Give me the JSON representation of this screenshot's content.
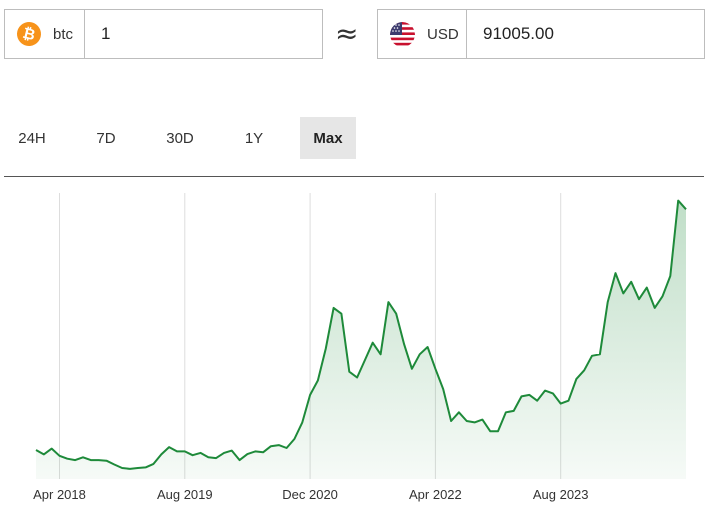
{
  "converter": {
    "from": {
      "code": "btc",
      "amount": "1",
      "icon": "bitcoin-icon",
      "icon_color": "#f7931a",
      "icon_glyph": "₿"
    },
    "approx_symbol": "≈",
    "to": {
      "code": "USD",
      "amount": "91005.00",
      "icon": "us-flag-icon"
    }
  },
  "ranges": [
    {
      "label": "24H",
      "active": false
    },
    {
      "label": "7D",
      "active": false
    },
    {
      "label": "30D",
      "active": false
    },
    {
      "label": "1Y",
      "active": false
    },
    {
      "label": "Max",
      "active": true
    }
  ],
  "chart_data": {
    "type": "area",
    "line_color": "#1e8a3a",
    "fill_color": "#e3f2e7",
    "grid": "vertical",
    "x_ticks": [
      "Apr 2018",
      "Aug 2019",
      "Dec 2020",
      "Apr 2022",
      "Aug 2023"
    ],
    "xlim": [
      "2018-01",
      "2024-12"
    ],
    "ylim": [
      0,
      100000
    ],
    "series": [
      {
        "x": [
          "2018-01",
          "2018-02",
          "2018-03",
          "2018-04",
          "2018-05",
          "2018-06",
          "2018-07",
          "2018-08",
          "2018-09",
          "2018-10",
          "2018-11",
          "2018-12",
          "2019-01",
          "2019-02",
          "2019-03",
          "2019-04",
          "2019-05",
          "2019-06",
          "2019-07",
          "2019-08",
          "2019-09",
          "2019-10",
          "2019-11",
          "2019-12",
          "2020-01",
          "2020-02",
          "2020-03",
          "2020-04",
          "2020-05",
          "2020-06",
          "2020-07",
          "2020-08",
          "2020-09",
          "2020-10",
          "2020-11",
          "2020-12",
          "2021-01",
          "2021-02",
          "2021-03",
          "2021-04",
          "2021-05",
          "2021-06",
          "2021-07",
          "2021-08",
          "2021-09",
          "2021-10",
          "2021-11",
          "2021-12",
          "2022-01",
          "2022-02",
          "2022-03",
          "2022-04",
          "2022-05",
          "2022-06",
          "2022-07",
          "2022-08",
          "2022-09",
          "2022-10",
          "2022-11",
          "2022-12",
          "2023-01",
          "2023-02",
          "2023-03",
          "2023-04",
          "2023-05",
          "2023-06",
          "2023-07",
          "2023-08",
          "2023-09",
          "2023-10",
          "2023-11",
          "2023-12",
          "2024-01",
          "2024-02",
          "2024-03",
          "2024-04",
          "2024-05",
          "2024-06",
          "2024-07",
          "2024-08",
          "2024-09",
          "2024-10",
          "2024-11",
          "2024-12"
        ],
        "values": [
          10000,
          8500,
          10500,
          8000,
          7000,
          6500,
          7500,
          6500,
          6500,
          6300,
          5000,
          3800,
          3500,
          3800,
          4000,
          5200,
          8500,
          11000,
          9500,
          9500,
          8200,
          9000,
          7500,
          7200,
          9000,
          9800,
          6500,
          8600,
          9500,
          9200,
          11300,
          11700,
          10700,
          13800,
          19500,
          29000,
          34000,
          45000,
          59000,
          57000,
          37000,
          35000,
          41000,
          47000,
          43000,
          61000,
          57000,
          46500,
          38000,
          43000,
          45500,
          38000,
          31000,
          20000,
          23000,
          20000,
          19500,
          20500,
          16500,
          16500,
          23000,
          23500,
          28500,
          29000,
          27000,
          30500,
          29500,
          26000,
          27000,
          34500,
          37500,
          42500,
          43000,
          61000,
          71000,
          64000,
          68000,
          62000,
          66000,
          59000,
          63000,
          70000,
          96000,
          93000
        ]
      }
    ]
  }
}
